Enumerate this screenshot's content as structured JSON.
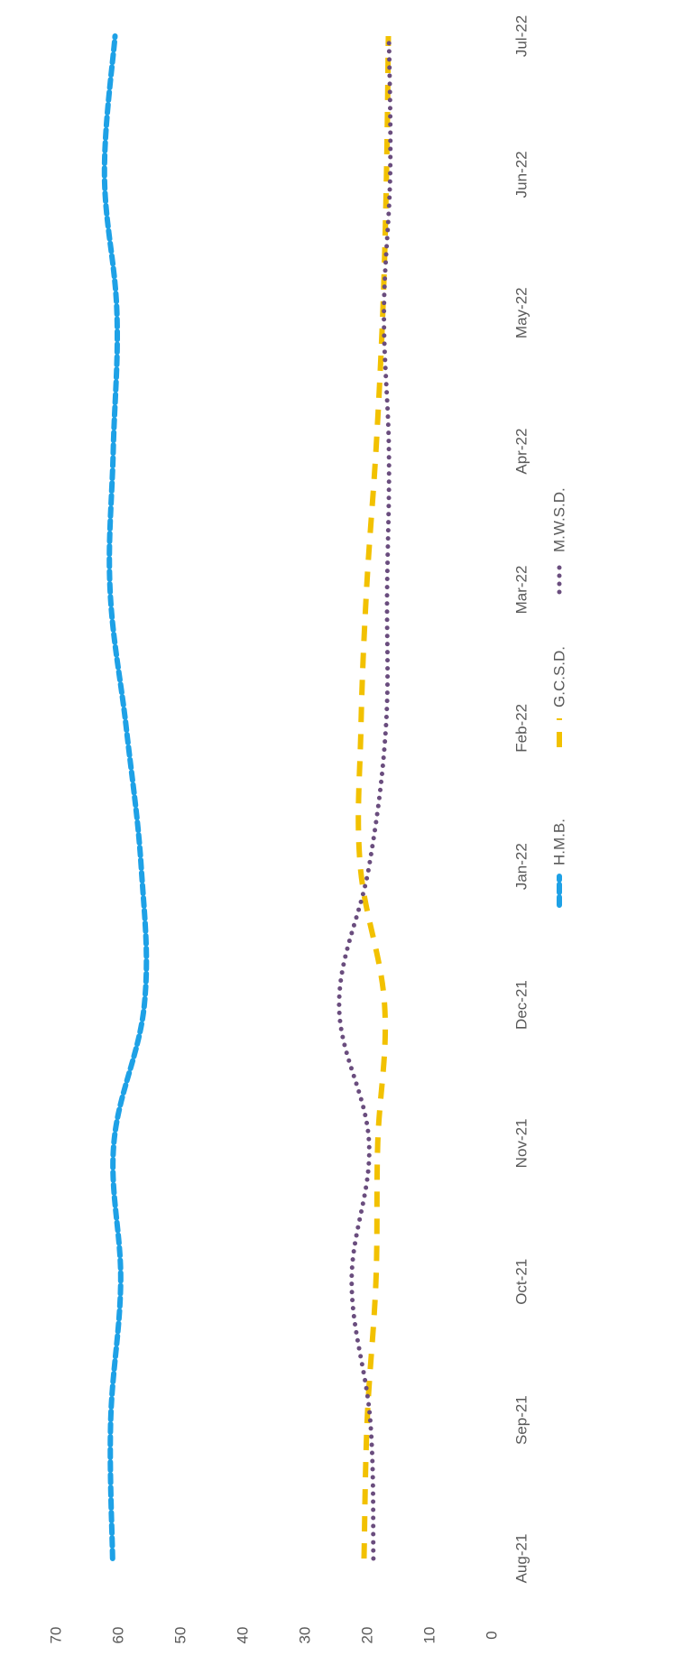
{
  "chart_data": {
    "type": "line",
    "orientation": "rotated 90 degrees clockwise",
    "title": "",
    "xlabel": "",
    "ylabel": "",
    "categories": [
      "Aug-21",
      "Sep-21",
      "Oct-21",
      "Nov-21",
      "Dec-21",
      "Jan-22",
      "Feb-22",
      "Mar-22",
      "Apr-22",
      "May-22",
      "Jun-22",
      "Jul-22"
    ],
    "ylim": [
      0,
      70
    ],
    "yticks": [
      "0",
      "10",
      "20",
      "30",
      "40",
      "50",
      "60",
      "70"
    ],
    "grid": false,
    "legend_position": "bottom",
    "series": [
      {
        "name": "H.M.B.",
        "color": "#1ea1e6",
        "style": "dashed",
        "values": [
          60.9,
          61.2,
          59.6,
          60.7,
          55.8,
          56.3,
          58.7,
          61.3,
          60.8,
          60.2,
          62.2,
          60.5
        ]
      },
      {
        "name": "G.C.S.D.",
        "color": "#f2c100",
        "style": "long-dash",
        "values": [
          20.5,
          20.0,
          18.6,
          18.3,
          17.2,
          21.1,
          21.0,
          20.1,
          18.6,
          17.5,
          16.9,
          16.6
        ]
      },
      {
        "name": "M.W.S.D.",
        "color": "#6a4d7e",
        "style": "dotted",
        "values": [
          19.0,
          19.5,
          22.5,
          19.7,
          24.5,
          19.7,
          17.0,
          16.8,
          16.5,
          17.3,
          16.3,
          16.5
        ]
      }
    ]
  }
}
